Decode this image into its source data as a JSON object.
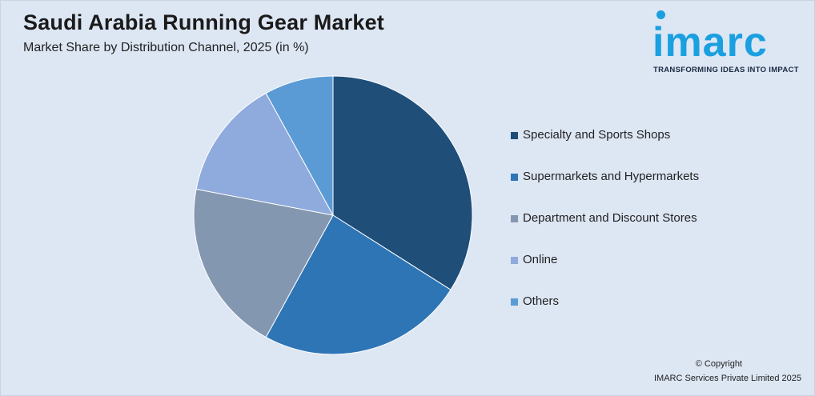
{
  "header": {
    "title": "Saudi Arabia Running Gear Market",
    "subtitle": "Market Share by Distribution Channel, 2025 (in %)"
  },
  "logo": {
    "word": "imarc",
    "tagline": "TRANSFORMING IDEAS INTO IMPACT"
  },
  "footer": {
    "copyright": "© Copyright",
    "company": "IMARC Services Private Limited 2025"
  },
  "colors": {
    "background": "#dde6f3",
    "brand": "#1aa0e0"
  },
  "chart_data": {
    "type": "pie",
    "title": "Saudi Arabia Running Gear Market",
    "subtitle": "Market Share by Distribution Channel, 2025 (in %)",
    "legend_position": "right",
    "categories": [
      "Specialty and Sports Shops",
      "Supermarkets and Hypermarkets",
      "Department and Discount Stores",
      "Online",
      "Others"
    ],
    "values": [
      34,
      24,
      20,
      14,
      8
    ],
    "colors": [
      "#1f4e79",
      "#2e75b6",
      "#8497b0",
      "#8faadc",
      "#5b9bd5"
    ]
  }
}
